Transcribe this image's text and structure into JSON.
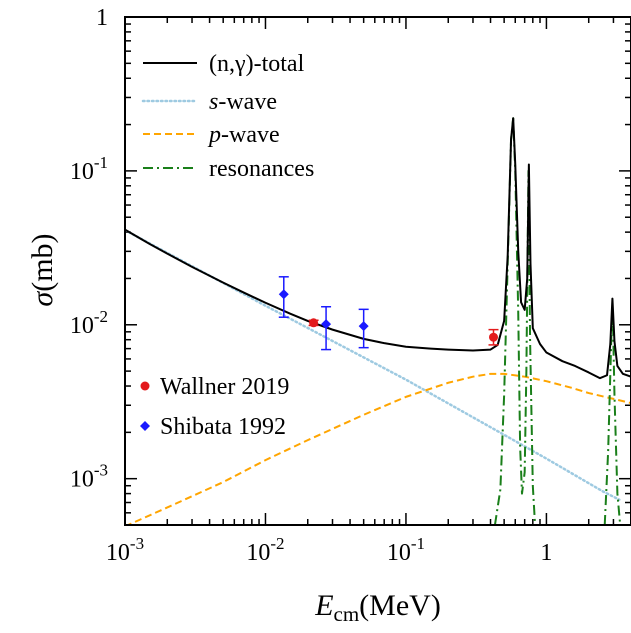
{
  "chart_data": {
    "type": "line",
    "x_scale": "log",
    "y_scale": "log",
    "xlim": [
      0.001,
      4
    ],
    "ylim": [
      0.0005,
      1
    ],
    "xlabel": {
      "symbol": "E",
      "subscript": "cm",
      "unit": "(MeV)"
    },
    "ylabel": {
      "symbol": "σ",
      "unit": "(mb)"
    },
    "x_ticks": [
      {
        "value": 0.001,
        "base": "10",
        "exp": "-3"
      },
      {
        "value": 0.01,
        "base": "10",
        "exp": "-2"
      },
      {
        "value": 0.1,
        "base": "10",
        "exp": "-1"
      },
      {
        "value": 1,
        "base": "1",
        "exp": ""
      }
    ],
    "y_ticks": [
      {
        "value": 0.001,
        "base": "10",
        "exp": "-3"
      },
      {
        "value": 0.01,
        "base": "10",
        "exp": "-2"
      },
      {
        "value": 0.1,
        "base": "10",
        "exp": "-1"
      },
      {
        "value": 1,
        "base": "1",
        "exp": ""
      }
    ],
    "legend_placement": "top-left",
    "series": [
      {
        "name": "(n,γ)-total",
        "color": "#000000",
        "dash": "solid",
        "points": [
          [
            0.001,
            0.0415
          ],
          [
            0.0015,
            0.0335
          ],
          [
            0.002,
            0.029
          ],
          [
            0.003,
            0.0238
          ],
          [
            0.005,
            0.0188
          ],
          [
            0.007,
            0.0162
          ],
          [
            0.01,
            0.0139
          ],
          [
            0.015,
            0.0118
          ],
          [
            0.02,
            0.0106
          ],
          [
            0.03,
            0.0093
          ],
          [
            0.05,
            0.0081
          ],
          [
            0.07,
            0.0076
          ],
          [
            0.1,
            0.0072
          ],
          [
            0.15,
            0.007
          ],
          [
            0.2,
            0.0069
          ],
          [
            0.3,
            0.0068
          ],
          [
            0.4,
            0.0069
          ],
          [
            0.45,
            0.0074
          ],
          [
            0.5,
            0.0106
          ],
          [
            0.53,
            0.028
          ],
          [
            0.56,
            0.16
          ],
          [
            0.58,
            0.22
          ],
          [
            0.6,
            0.11
          ],
          [
            0.63,
            0.03
          ],
          [
            0.66,
            0.014
          ],
          [
            0.7,
            0.0125
          ],
          [
            0.73,
            0.02
          ],
          [
            0.75,
            0.11
          ],
          [
            0.77,
            0.025
          ],
          [
            0.8,
            0.0095
          ],
          [
            0.9,
            0.0075
          ],
          [
            1.0,
            0.0066
          ],
          [
            1.3,
            0.0058
          ],
          [
            1.6,
            0.0054
          ],
          [
            2.0,
            0.0049
          ],
          [
            2.4,
            0.0045
          ],
          [
            2.7,
            0.0047
          ],
          [
            2.85,
            0.0075
          ],
          [
            2.95,
            0.0148
          ],
          [
            3.05,
            0.0078
          ],
          [
            3.2,
            0.0054
          ],
          [
            3.5,
            0.0048
          ],
          [
            4.0,
            0.0046
          ]
        ]
      },
      {
        "name": "s-wave",
        "name_prefix": "s",
        "name_suffix": "-wave",
        "color": "#9ecae1",
        "dash": "dotted",
        "points": [
          [
            0.001,
            0.0412
          ],
          [
            0.01,
            0.0133
          ],
          [
            0.1,
            0.0044
          ],
          [
            1,
            0.00135
          ],
          [
            2.5,
            0.00083
          ],
          [
            3.3,
            0.00073
          ]
        ]
      },
      {
        "name": "p-wave",
        "name_prefix": "p",
        "name_suffix": "-wave",
        "color": "#ffa500",
        "dash": "dashed",
        "points": [
          [
            0.001,
            0.00049
          ],
          [
            0.002,
            0.00065
          ],
          [
            0.005,
            0.00095
          ],
          [
            0.01,
            0.00132
          ],
          [
            0.02,
            0.00178
          ],
          [
            0.05,
            0.0026
          ],
          [
            0.1,
            0.0034
          ],
          [
            0.2,
            0.0042
          ],
          [
            0.3,
            0.0046
          ],
          [
            0.4,
            0.0048
          ],
          [
            0.5,
            0.0048
          ],
          [
            0.7,
            0.0046
          ],
          [
            1.0,
            0.0043
          ],
          [
            1.5,
            0.0039
          ],
          [
            2.0,
            0.0036
          ],
          [
            3.0,
            0.0033
          ],
          [
            4.0,
            0.0031
          ]
        ]
      },
      {
        "name": "resonances",
        "color": "#1a7f1a",
        "dash": "dashdot",
        "segments": [
          [
            [
              0.43,
              0.0005
            ],
            [
              0.47,
              0.00085
            ],
            [
              0.5,
              0.0035
            ],
            [
              0.53,
              0.025
            ],
            [
              0.56,
              0.16
            ],
            [
              0.58,
              0.22
            ],
            [
              0.6,
              0.1
            ],
            [
              0.63,
              0.012
            ],
            [
              0.65,
              0.0016
            ],
            [
              0.67,
              0.0008
            ],
            [
              0.7,
              0.0011
            ],
            [
              0.72,
              0.005
            ],
            [
              0.745,
              0.1
            ],
            [
              0.765,
              0.008
            ],
            [
              0.8,
              0.0009
            ],
            [
              0.83,
              0.0005
            ]
          ],
          [
            [
              2.6,
              0.0005
            ],
            [
              2.75,
              0.0015
            ],
            [
              2.9,
              0.0085
            ],
            [
              2.97,
              0.0115
            ],
            [
              3.05,
              0.0035
            ],
            [
              3.2,
              0.0008
            ],
            [
              3.35,
              0.0005
            ]
          ]
        ]
      }
    ],
    "data_points": [
      {
        "name": "Wallner 2019",
        "color": "#e31a1c",
        "marker": "circle",
        "points": [
          {
            "x": 0.022,
            "y": 0.0103,
            "ylo": 0.0099,
            "yhi": 0.0107
          },
          {
            "x": 0.42,
            "y": 0.0083,
            "ylo": 0.0074,
            "yhi": 0.0093
          }
        ]
      },
      {
        "name": "Shibata 1992",
        "color": "#1a1aff",
        "marker": "diamond",
        "points": [
          {
            "x": 0.0135,
            "y": 0.0158,
            "ylo": 0.0112,
            "yhi": 0.0205
          },
          {
            "x": 0.027,
            "y": 0.0101,
            "ylo": 0.0069,
            "yhi": 0.0131
          },
          {
            "x": 0.05,
            "y": 0.0098,
            "ylo": 0.0071,
            "yhi": 0.0126
          }
        ]
      }
    ]
  }
}
